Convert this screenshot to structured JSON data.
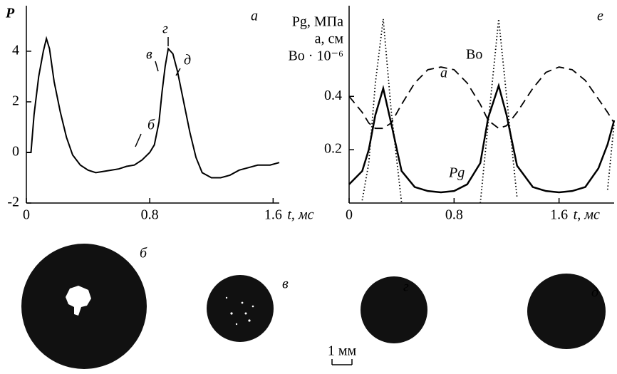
{
  "chart_data": [
    {
      "type": "line",
      "panel_label": "а",
      "ylabel": "P",
      "xlabel": "t, мс",
      "xlim": [
        0,
        1.64
      ],
      "ylim": [
        -2,
        5.8
      ],
      "xticks": [
        0,
        0.8,
        1.6
      ],
      "yticks": [
        -2,
        0,
        2,
        4
      ],
      "color": "#000000",
      "x": [
        0,
        0.03,
        0.05,
        0.08,
        0.11,
        0.13,
        0.15,
        0.18,
        0.22,
        0.26,
        0.3,
        0.35,
        0.4,
        0.45,
        0.5,
        0.55,
        0.6,
        0.65,
        0.7,
        0.75,
        0.8,
        0.83,
        0.86,
        0.88,
        0.9,
        0.92,
        0.95,
        0.98,
        1.02,
        1.06,
        1.1,
        1.14,
        1.2,
        1.26,
        1.32,
        1.38,
        1.44,
        1.5,
        1.58,
        1.64
      ],
      "values": [
        0,
        0,
        1.5,
        3.0,
        4.0,
        4.5,
        4.1,
        2.8,
        1.6,
        0.6,
        -0.1,
        -0.5,
        -0.7,
        -0.8,
        -0.75,
        -0.7,
        -0.65,
        -0.55,
        -0.5,
        -0.3,
        0,
        0.3,
        1.2,
        2.4,
        3.4,
        4.1,
        3.9,
        3.2,
        2.0,
        0.8,
        -0.2,
        -0.8,
        -1.0,
        -1.0,
        -0.9,
        -0.7,
        -0.6,
        -0.5,
        -0.5,
        -0.4
      ],
      "annotations": [
        "б",
        "в",
        "г",
        "д"
      ]
    },
    {
      "type": "line",
      "panel_label": "е",
      "ylabel": [
        "Pg, МПа",
        "a, см",
        "Bo · 10⁻⁶"
      ],
      "xlabel": "t, мс",
      "xlim": [
        0,
        2.02
      ],
      "ylim": [
        0,
        0.74
      ],
      "xticks": [
        0,
        0.8,
        1.6
      ],
      "yticks": [
        0.2,
        0.4
      ],
      "x": [
        0,
        0.1,
        0.15,
        0.2,
        0.26,
        0.32,
        0.4,
        0.5,
        0.6,
        0.7,
        0.8,
        0.9,
        1.0,
        1.06,
        1.14,
        1.2,
        1.28,
        1.4,
        1.5,
        1.6,
        1.7,
        1.8,
        1.9,
        1.97,
        2.02
      ],
      "series": [
        {
          "name": "Pg",
          "color": "#000000",
          "dash": "solid",
          "values": [
            0.07,
            0.12,
            0.2,
            0.33,
            0.43,
            0.3,
            0.12,
            0.06,
            0.045,
            0.04,
            0.045,
            0.07,
            0.15,
            0.32,
            0.44,
            0.33,
            0.14,
            0.06,
            0.045,
            0.04,
            0.045,
            0.06,
            0.13,
            0.22,
            0.31
          ]
        },
        {
          "name": "a",
          "color": "#000000",
          "dash": "dashed",
          "values": [
            0.4,
            0.34,
            0.3,
            0.28,
            0.28,
            0.3,
            0.37,
            0.45,
            0.5,
            0.51,
            0.5,
            0.45,
            0.37,
            0.31,
            0.28,
            0.29,
            0.34,
            0.43,
            0.49,
            0.51,
            0.5,
            0.46,
            0.39,
            0.34,
            0.3
          ]
        },
        {
          "name": "Bo",
          "color": "#000000",
          "dash": "dotted",
          "values": [
            null,
            0.01,
            0.15,
            0.45,
            0.69,
            0.35,
            0,
            null,
            null,
            null,
            null,
            null,
            0,
            0.3,
            0.69,
            0.4,
            0.02,
            null,
            null,
            null,
            null,
            null,
            null,
            0.05,
            0.3
          ]
        }
      ]
    }
  ],
  "images": {
    "labels": [
      "б",
      "в",
      "г",
      "д"
    ],
    "scale_bar": "1 мм"
  }
}
